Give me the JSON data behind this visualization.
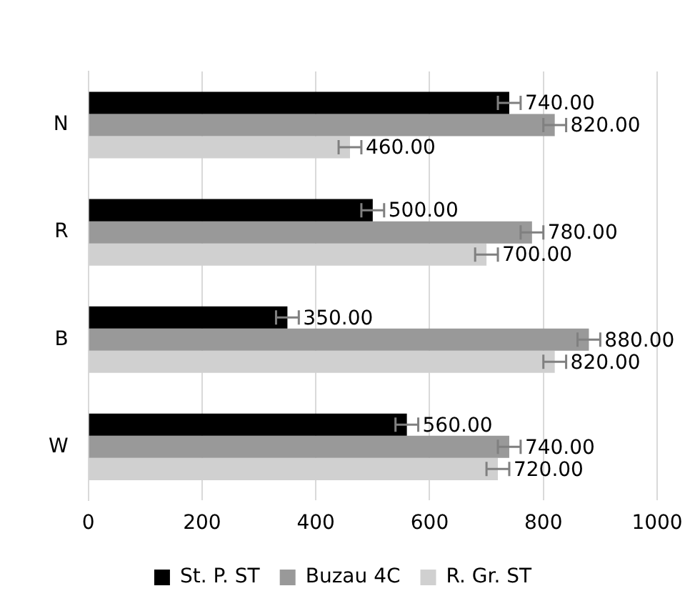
{
  "chart_data": {
    "type": "bar",
    "orientation": "horizontal",
    "categories": [
      "N",
      "R",
      "B",
      "W"
    ],
    "series": [
      {
        "name": "St. P. ST",
        "color": "#000000",
        "values": [
          740,
          500,
          350,
          560
        ],
        "errors": [
          20,
          20,
          20,
          20
        ],
        "value_labels": [
          "740.00",
          "500.00",
          "350.00",
          "560.00"
        ]
      },
      {
        "name": "Buzau 4C",
        "color": "#999999",
        "values": [
          820,
          780,
          880,
          740
        ],
        "errors": [
          20,
          20,
          20,
          20
        ],
        "value_labels": [
          "820.00",
          "780.00",
          "880.00",
          "740.00"
        ]
      },
      {
        "name": "R. Gr. ST",
        "color": "#d0d0d0",
        "values": [
          460,
          700,
          820,
          720
        ],
        "errors": [
          20,
          20,
          20,
          20
        ],
        "value_labels": [
          "460.00",
          "700.00",
          "820.00",
          "720.00"
        ]
      }
    ],
    "xlim": [
      0,
      1000
    ],
    "xticks": [
      0,
      200,
      400,
      600,
      800,
      1000
    ],
    "grid": "x",
    "legend": "bottom"
  }
}
